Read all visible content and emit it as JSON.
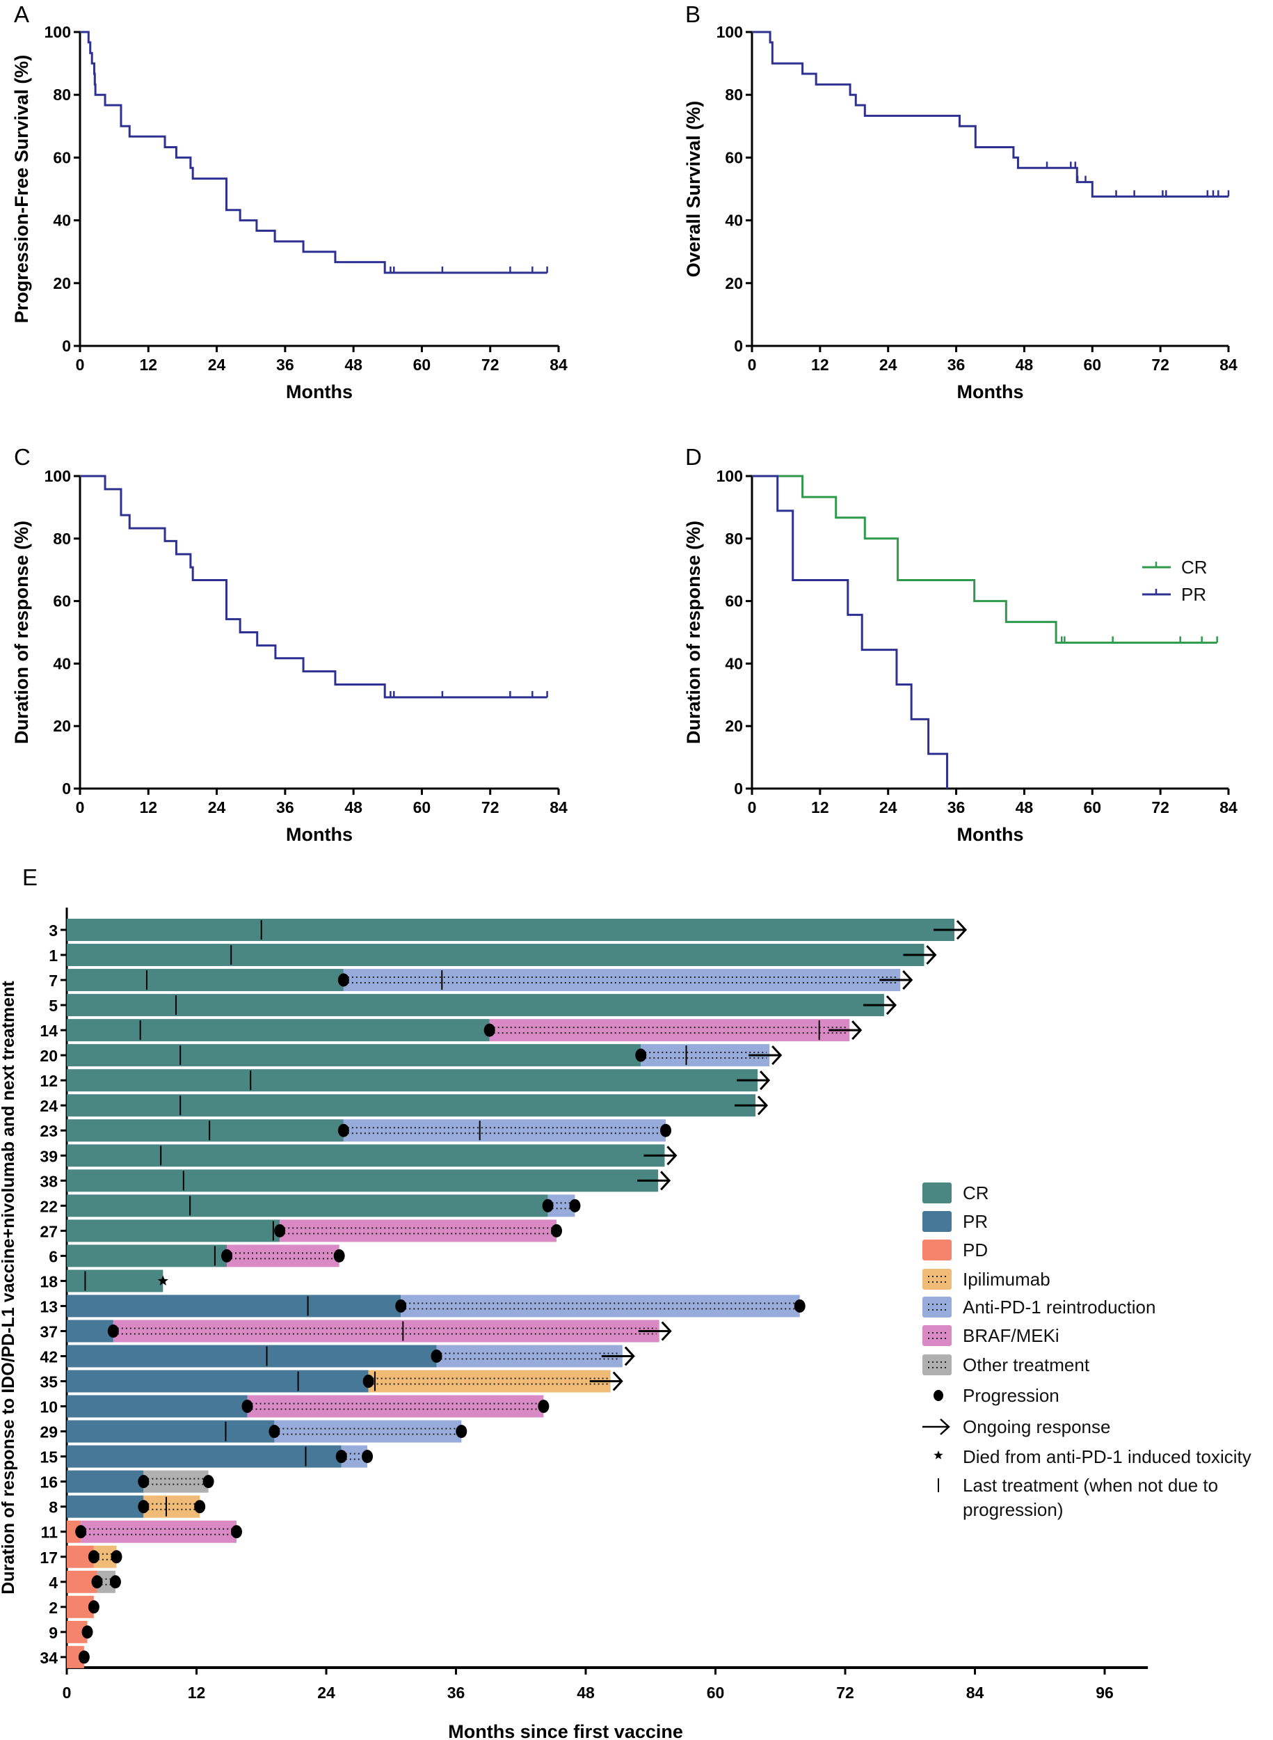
{
  "chart_data": [
    {
      "panel": "A",
      "type": "line",
      "subtype": "kaplan-meier",
      "xlabel": "Months",
      "ylabel": "Progression-Free Survival (%)",
      "xlim": [
        0,
        84
      ],
      "ylim": [
        0,
        100
      ],
      "xticks": [
        0,
        12,
        24,
        36,
        48,
        60,
        72,
        84
      ],
      "yticks": [
        0,
        20,
        40,
        60,
        80,
        100
      ],
      "grid": false,
      "series": [
        {
          "color": "#2e3192",
          "end": 82,
          "steps": [
            [
              1.5,
              96.7
            ],
            [
              1.8,
              93.3
            ],
            [
              2.1,
              90
            ],
            [
              2.5,
              86.7
            ],
            [
              2.6,
              83.3
            ],
            [
              2.7,
              80
            ],
            [
              4.4,
              76.7
            ],
            [
              7.2,
              70
            ],
            [
              8.7,
              66.7
            ],
            [
              14.9,
              63.3
            ],
            [
              16.9,
              60
            ],
            [
              19.4,
              56.7
            ],
            [
              19.8,
              53.3
            ],
            [
              25.7,
              43.3
            ],
            [
              28.1,
              40
            ],
            [
              31.0,
              36.7
            ],
            [
              34.2,
              33.3
            ],
            [
              39.2,
              30
            ],
            [
              44.8,
              26.7
            ],
            [
              53.5,
              23.3
            ]
          ],
          "censored": [
            54.5,
            55.1,
            63.6,
            75.5,
            79.4,
            82
          ]
        }
      ]
    },
    {
      "panel": "B",
      "type": "line",
      "subtype": "kaplan-meier",
      "xlabel": "Months",
      "ylabel": "Overall Survival (%)",
      "xlim": [
        0,
        84
      ],
      "ylim": [
        0,
        100
      ],
      "xticks": [
        0,
        12,
        24,
        36,
        48,
        60,
        72,
        84
      ],
      "yticks": [
        0,
        20,
        40,
        60,
        80,
        100
      ],
      "grid": false,
      "series": [
        {
          "color": "#2e3192",
          "end": 84,
          "steps": [
            [
              3.2,
              96.7
            ],
            [
              3.6,
              90
            ],
            [
              8.9,
              86.7
            ],
            [
              11.3,
              83.3
            ],
            [
              17.3,
              80
            ],
            [
              18.3,
              76.7
            ],
            [
              19.9,
              73.3
            ],
            [
              36.6,
              70
            ],
            [
              39.4,
              63.3
            ],
            [
              46.1,
              60
            ],
            [
              46.9,
              56.7
            ],
            [
              57.3,
              52.2
            ],
            [
              60,
              47.6
            ]
          ],
          "censored": [
            52,
            56.2,
            57,
            57.4,
            58.8,
            64.2,
            67.4,
            72.4,
            73,
            80.3,
            81.3,
            82.2,
            84
          ]
        }
      ]
    },
    {
      "panel": "C",
      "type": "line",
      "subtype": "kaplan-meier",
      "xlabel": "Months",
      "ylabel": "Duration of response (%)",
      "xlim": [
        0,
        84
      ],
      "ylim": [
        0,
        100
      ],
      "xticks": [
        0,
        12,
        24,
        36,
        48,
        60,
        72,
        84
      ],
      "yticks": [
        0,
        20,
        40,
        60,
        80,
        100
      ],
      "grid": false,
      "series": [
        {
          "color": "#2e3192",
          "end": 82,
          "steps": [
            [
              4.4,
              95.8
            ],
            [
              7.2,
              87.5
            ],
            [
              8.7,
              83.3
            ],
            [
              14.9,
              79.2
            ],
            [
              16.9,
              75
            ],
            [
              19.4,
              70.8
            ],
            [
              19.8,
              66.7
            ],
            [
              25.7,
              54.2
            ],
            [
              28.1,
              50
            ],
            [
              31.1,
              45.8
            ],
            [
              34.3,
              41.7
            ],
            [
              39.2,
              37.5
            ],
            [
              44.8,
              33.3
            ],
            [
              53.5,
              29.2
            ]
          ],
          "censored": [
            54.5,
            55.1,
            63.6,
            75.5,
            79.4,
            82
          ]
        }
      ]
    },
    {
      "panel": "D",
      "type": "line",
      "subtype": "kaplan-meier",
      "xlabel": "Months",
      "ylabel": "Duration of response (%)",
      "xlim": [
        0,
        84
      ],
      "ylim": [
        0,
        100
      ],
      "xticks": [
        0,
        12,
        24,
        36,
        48,
        60,
        72,
        84
      ],
      "yticks": [
        0,
        20,
        40,
        60,
        80,
        100
      ],
      "grid": false,
      "legend": "right",
      "series": [
        {
          "name": "CR",
          "color": "#2f9a4c",
          "end": 82,
          "steps": [
            [
              8.9,
              93.3
            ],
            [
              14.8,
              86.7
            ],
            [
              19.9,
              80
            ],
            [
              25.7,
              66.7
            ],
            [
              39.2,
              60
            ],
            [
              44.8,
              53.3
            ],
            [
              53.6,
              46.7
            ]
          ],
          "censored": [
            54.6,
            55.1,
            63.6,
            75.5,
            79.3,
            82
          ]
        },
        {
          "name": "PR",
          "color": "#2e3192",
          "end": 34.4,
          "steps": [
            [
              4.5,
              88.9
            ],
            [
              7.2,
              66.7
            ],
            [
              16.9,
              55.6
            ],
            [
              19.4,
              44.4
            ],
            [
              25.5,
              33.3
            ],
            [
              28.1,
              22.2
            ],
            [
              31.1,
              11.1
            ],
            [
              34.4,
              0
            ]
          ],
          "censored": []
        }
      ]
    },
    {
      "panel": "E",
      "type": "bar",
      "subtype": "swimmer",
      "xlabel": "Months since first vaccine",
      "ylabel": "Duration of response to IDO/PD-L1 vaccine+nivolumab and next treatment",
      "xlim": [
        0,
        100
      ],
      "xticks": [
        0,
        12,
        24,
        36,
        48,
        60,
        72,
        84,
        96
      ],
      "legend": "right",
      "colors": {
        "CR": "#4a8783",
        "PR": "#477897",
        "PD": "#f4856c",
        "Ipilimumab": "#f0bb77",
        "Anti-PD-1 reintroduction": "#98acdc",
        "BRAF/MEKi": "#d98ac4",
        "Other treatment": "#b0b0b0"
      },
      "legend_items": [
        {
          "label": "CR",
          "kind": "CR"
        },
        {
          "label": "PR",
          "kind": "PR"
        },
        {
          "label": "PD",
          "kind": "PD"
        },
        {
          "label": "Ipilimumab",
          "kind": "Ipilimumab"
        },
        {
          "label": "Anti-PD-1 reintroduction",
          "kind": "Anti-PD-1 reintroduction"
        },
        {
          "label": "BRAF/MEKi",
          "kind": "BRAF/MEKi"
        },
        {
          "label": "Other treatment",
          "kind": "Other treatment"
        },
        {
          "label": "Progression",
          "kind": "progression"
        },
        {
          "label": "Ongoing response",
          "kind": "ongoing"
        },
        {
          "label": "Died from anti-PD-1 induced toxicity",
          "kind": "died"
        },
        {
          "label": "Last treatment (when not due to",
          "label2": "progression)",
          "kind": "last"
        }
      ],
      "patients": [
        {
          "id": "3",
          "segments": [
            [
              "CR",
              82.1
            ]
          ],
          "progression": [],
          "last_treatment": [
            18.0
          ],
          "ongoing": true
        },
        {
          "id": "1",
          "segments": [
            [
              "CR",
              79.3
            ]
          ],
          "progression": [],
          "last_treatment": [
            15.2
          ],
          "ongoing": true
        },
        {
          "id": "7",
          "segments": [
            [
              "CR",
              25.6
            ],
            [
              "Anti-PD-1 reintroduction",
              77.1
            ]
          ],
          "progression": [
            25.6
          ],
          "last_treatment": [
            7.4,
            34.7
          ],
          "ongoing": true
        },
        {
          "id": "5",
          "segments": [
            [
              "CR",
              75.6
            ]
          ],
          "progression": [],
          "last_treatment": [
            10.1
          ],
          "ongoing": true
        },
        {
          "id": "14",
          "segments": [
            [
              "CR",
              39.1
            ],
            [
              "BRAF/MEKi",
              72.4
            ]
          ],
          "progression": [
            39.1
          ],
          "last_treatment": [
            6.8,
            69.6
          ],
          "ongoing": true
        },
        {
          "id": "20",
          "segments": [
            [
              "CR",
              53.1
            ],
            [
              "Anti-PD-1 reintroduction",
              65.0
            ]
          ],
          "progression": [
            53.1
          ],
          "last_treatment": [
            10.5,
            57.3
          ],
          "ongoing": true
        },
        {
          "id": "12",
          "segments": [
            [
              "CR",
              63.9
            ]
          ],
          "progression": [],
          "last_treatment": [
            17.0
          ],
          "ongoing": true
        },
        {
          "id": "24",
          "segments": [
            [
              "CR",
              63.7
            ]
          ],
          "progression": [],
          "last_treatment": [
            10.5
          ],
          "ongoing": true
        },
        {
          "id": "23",
          "segments": [
            [
              "CR",
              25.6
            ],
            [
              "Anti-PD-1 reintroduction",
              55.4
            ]
          ],
          "progression": [
            25.6,
            55.4
          ],
          "last_treatment": [
            13.2,
            38.2
          ],
          "ongoing": false
        },
        {
          "id": "39",
          "segments": [
            [
              "CR",
              55.3
            ]
          ],
          "progression": [],
          "last_treatment": [
            8.7
          ],
          "ongoing": true
        },
        {
          "id": "38",
          "segments": [
            [
              "CR",
              54.7
            ]
          ],
          "progression": [],
          "last_treatment": [
            10.8
          ],
          "ongoing": true
        },
        {
          "id": "22",
          "segments": [
            [
              "CR",
              44.5
            ],
            [
              "Anti-PD-1 reintroduction",
              47.0
            ]
          ],
          "progression": [
            44.5,
            47.0
          ],
          "last_treatment": [
            11.4
          ],
          "ongoing": false
        },
        {
          "id": "27",
          "segments": [
            [
              "CR",
              19.7
            ],
            [
              "BRAF/MEKi",
              45.3
            ]
          ],
          "progression": [
            19.7,
            45.3
          ],
          "last_treatment": [
            19.1
          ],
          "ongoing": false
        },
        {
          "id": "6",
          "segments": [
            [
              "CR",
              14.8
            ],
            [
              "BRAF/MEKi",
              25.2
            ]
          ],
          "progression": [
            14.8,
            25.2
          ],
          "last_treatment": [
            13.7
          ],
          "ongoing": false
        },
        {
          "id": "18",
          "segments": [
            [
              "CR",
              8.9
            ]
          ],
          "progression": [],
          "last_treatment": [
            1.7
          ],
          "ongoing": false,
          "died": 8.9
        },
        {
          "id": "13",
          "segments": [
            [
              "PR",
              30.9
            ],
            [
              "Anti-PD-1 reintroduction",
              67.8
            ]
          ],
          "progression": [
            30.9,
            67.8
          ],
          "last_treatment": [
            22.3
          ],
          "ongoing": false
        },
        {
          "id": "37",
          "segments": [
            [
              "PR",
              4.3
            ],
            [
              "BRAF/MEKi",
              54.8
            ]
          ],
          "progression": [
            4.3
          ],
          "last_treatment": [
            31.1
          ],
          "ongoing": true
        },
        {
          "id": "42",
          "segments": [
            [
              "PR",
              34.2
            ],
            [
              "Anti-PD-1 reintroduction",
              51.4
            ]
          ],
          "progression": [
            34.2
          ],
          "last_treatment": [
            18.5
          ],
          "ongoing": true
        },
        {
          "id": "35",
          "segments": [
            [
              "PR",
              27.9
            ],
            [
              "Ipilimumab",
              50.3
            ]
          ],
          "progression": [
            27.9
          ],
          "last_treatment": [
            21.4,
            28.5
          ],
          "ongoing": true
        },
        {
          "id": "10",
          "segments": [
            [
              "PR",
              16.7
            ],
            [
              "BRAF/MEKi",
              44.1
            ]
          ],
          "progression": [
            16.7,
            44.1
          ],
          "last_treatment": [],
          "ongoing": false
        },
        {
          "id": "29",
          "segments": [
            [
              "PR",
              19.2
            ],
            [
              "Anti-PD-1 reintroduction",
              36.5
            ]
          ],
          "progression": [
            19.2,
            36.5
          ],
          "last_treatment": [
            14.7
          ],
          "ongoing": false
        },
        {
          "id": "15",
          "segments": [
            [
              "PR",
              25.4
            ],
            [
              "Anti-PD-1 reintroduction",
              27.8
            ]
          ],
          "progression": [
            25.4,
            27.8
          ],
          "last_treatment": [
            22.1
          ],
          "ongoing": false
        },
        {
          "id": "16",
          "segments": [
            [
              "PR",
              7.1
            ],
            [
              "Other treatment",
              13.1
            ]
          ],
          "progression": [
            7.1,
            13.1
          ],
          "last_treatment": [],
          "ongoing": false
        },
        {
          "id": "8",
          "segments": [
            [
              "PR",
              7.1
            ],
            [
              "Ipilimumab",
              12.3
            ]
          ],
          "progression": [
            7.1,
            12.3
          ],
          "last_treatment": [
            9.2
          ],
          "ongoing": false
        },
        {
          "id": "11",
          "segments": [
            [
              "PD",
              1.3
            ],
            [
              "BRAF/MEKi",
              15.7
            ]
          ],
          "progression": [
            1.3,
            15.7
          ],
          "last_treatment": [],
          "ongoing": false
        },
        {
          "id": "17",
          "segments": [
            [
              "PD",
              2.5
            ],
            [
              "Ipilimumab",
              4.6
            ]
          ],
          "progression": [
            2.5,
            4.6
          ],
          "last_treatment": [],
          "ongoing": false
        },
        {
          "id": "4",
          "segments": [
            [
              "PD",
              2.8
            ],
            [
              "Other treatment",
              4.5
            ]
          ],
          "progression": [
            2.8,
            4.5
          ],
          "last_treatment": [],
          "ongoing": false
        },
        {
          "id": "2",
          "segments": [
            [
              "PD",
              2.5
            ]
          ],
          "progression": [
            2.5
          ],
          "last_treatment": [],
          "ongoing": false
        },
        {
          "id": "9",
          "segments": [
            [
              "PD",
              1.9
            ]
          ],
          "progression": [
            1.9
          ],
          "last_treatment": [],
          "ongoing": false
        },
        {
          "id": "34",
          "segments": [
            [
              "PD",
              1.6
            ]
          ],
          "progression": [
            1.6
          ],
          "last_treatment": [],
          "ongoing": false
        }
      ]
    }
  ]
}
